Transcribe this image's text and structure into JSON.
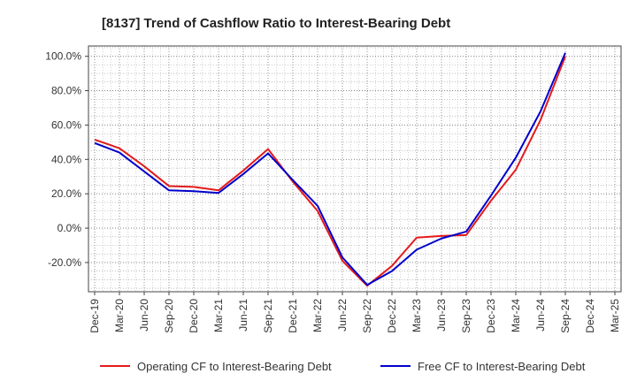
{
  "chart_data": {
    "type": "line",
    "title": "[8137]  Trend of Cashflow Ratio to Interest-Bearing Debt",
    "xlabel": "",
    "ylabel": "",
    "x": [
      "Dec-19",
      "Mar-20",
      "Jun-20",
      "Sep-20",
      "Dec-20",
      "Mar-21",
      "Jun-21",
      "Sep-21",
      "Dec-21",
      "Mar-22",
      "Jun-22",
      "Sep-22",
      "Dec-22",
      "Mar-23",
      "Jun-23",
      "Sep-23",
      "Dec-23",
      "Mar-24",
      "Jun-24",
      "Sep-24",
      "Dec-24",
      "Mar-25"
    ],
    "ylim": [
      -37,
      106
    ],
    "yticks": [
      -20,
      0,
      20,
      40,
      60,
      80,
      100
    ],
    "ytick_labels": [
      "-20.0%",
      "0.0%",
      "20.0%",
      "40.0%",
      "60.0%",
      "80.0%",
      "100.0%"
    ],
    "grid": true,
    "legend_position": "bottom",
    "series": [
      {
        "name": "Operating CF to Interest-Bearing Debt",
        "color": "#e41a1c",
        "values": [
          51.5,
          46.5,
          36,
          24.5,
          24,
          22,
          33.5,
          46,
          27,
          10,
          -19,
          -33.5,
          -22,
          -5.5,
          -4.5,
          -4,
          16,
          34,
          63,
          100,
          null,
          null
        ]
      },
      {
        "name": "Free CF to Interest-Bearing Debt",
        "color": "#0000cc",
        "values": [
          49.5,
          44,
          33,
          22,
          21.5,
          20.5,
          31.5,
          43.5,
          28,
          13,
          -17,
          -33,
          -25,
          -12.5,
          -6,
          -2,
          19,
          41,
          68,
          102,
          null,
          null
        ]
      }
    ]
  }
}
